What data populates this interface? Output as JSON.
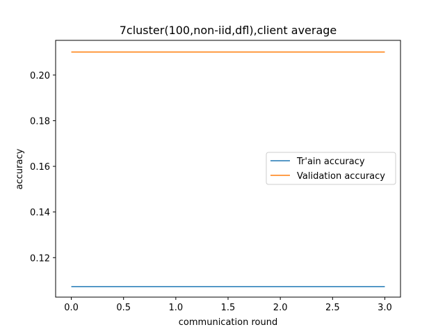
{
  "chart_data": {
    "type": "line",
    "title": "7cluster(100,non-iid,dfl),client average",
    "xlabel": "communication round",
    "ylabel": "accuracy",
    "x": [
      0,
      1,
      2,
      3
    ],
    "xlim": [
      -0.15,
      3.15
    ],
    "ylim": [
      0.1027,
      0.2152
    ],
    "xticks": [
      "0.0",
      "0.5",
      "1.0",
      "1.5",
      "2.0",
      "2.5",
      "3.0"
    ],
    "yticks": [
      "0.12",
      "0.14",
      "0.16",
      "0.18",
      "0.20"
    ],
    "grid": false,
    "legend_position": "center-right",
    "series": [
      {
        "name": "Tr'ain accuracy",
        "color": "#1f77b4",
        "values": [
          0.1073,
          0.1073,
          0.1073,
          0.1073
        ]
      },
      {
        "name": "Validation accuracy",
        "color": "#ff7f0e",
        "values": [
          0.2101,
          0.2101,
          0.2101,
          0.2101
        ]
      }
    ]
  }
}
